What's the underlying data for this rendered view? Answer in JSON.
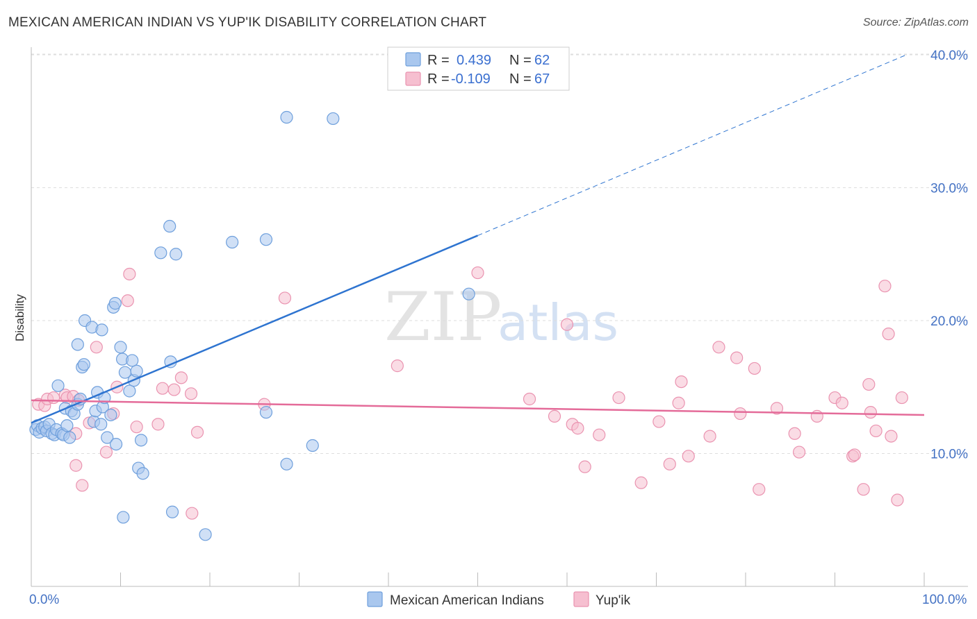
{
  "title": "MEXICAN AMERICAN INDIAN VS YUP'IK DISABILITY CORRELATION CHART",
  "source": "Source: ZipAtlas.com",
  "watermark": {
    "zip": "ZIP",
    "atlas": "atlas"
  },
  "colors": {
    "blue_fill": "#a9c7ee",
    "blue_stroke": "#6e9fdc",
    "blue_line": "#2e74d0",
    "pink_fill": "#f6bfd0",
    "pink_stroke": "#ea93b0",
    "pink_line": "#e46b99",
    "grid": "#dddddd",
    "tick_text": "#4472c4"
  },
  "legend": {
    "rows": [
      {
        "r_label": "R =",
        "r_value": "0.439",
        "n_label": "N =",
        "n_value": "62",
        "series": "blue"
      },
      {
        "r_label": "R =",
        "r_value": "-0.109",
        "n_label": "N =",
        "n_value": "67",
        "series": "pink"
      }
    ]
  },
  "chart_data": {
    "type": "scatter",
    "title": "MEXICAN AMERICAN INDIAN VS YUP'IK DISABILITY CORRELATION CHART",
    "xlabel": "",
    "ylabel": "Disability",
    "xlim": [
      0,
      100
    ],
    "ylim": [
      0,
      42
    ],
    "x_tick_labels": [
      "0.0%",
      "100.0%"
    ],
    "y_ticks": [
      10,
      20,
      30,
      40
    ],
    "y_tick_labels": [
      "10.0%",
      "20.0%",
      "30.0%",
      "40.0%"
    ],
    "grid": true,
    "legend_position": "top-center",
    "series": [
      {
        "name": "Mexican American Indians",
        "color": "blue",
        "R": 0.439,
        "N": 62,
        "trend": {
          "x0": 0,
          "y0": 12.3,
          "x1": 50,
          "y1": 26.4,
          "dashed_to_x": 98,
          "dashed_to_y": 40.0
        },
        "points": [
          [
            0.5,
            11.8
          ],
          [
            0.7,
            12.1
          ],
          [
            0.9,
            11.6
          ],
          [
            1.2,
            11.9
          ],
          [
            1.5,
            12.0
          ],
          [
            1.7,
            11.7
          ],
          [
            2.0,
            12.2
          ],
          [
            2.3,
            11.5
          ],
          [
            2.6,
            11.4
          ],
          [
            2.8,
            11.8
          ],
          [
            3.0,
            15.1
          ],
          [
            3.4,
            11.5
          ],
          [
            3.6,
            11.4
          ],
          [
            3.8,
            13.4
          ],
          [
            4.0,
            12.1
          ],
          [
            4.3,
            11.2
          ],
          [
            4.5,
            13.2
          ],
          [
            4.8,
            13.0
          ],
          [
            5.2,
            13.7
          ],
          [
            5.5,
            14.1
          ],
          [
            5.2,
            18.2
          ],
          [
            5.7,
            16.5
          ],
          [
            5.9,
            16.7
          ],
          [
            6.0,
            20.0
          ],
          [
            6.8,
            19.5
          ],
          [
            7.0,
            12.4
          ],
          [
            7.4,
            14.6
          ],
          [
            7.2,
            13.2
          ],
          [
            7.8,
            12.2
          ],
          [
            7.9,
            19.3
          ],
          [
            8.0,
            13.5
          ],
          [
            8.2,
            14.2
          ],
          [
            8.5,
            11.2
          ],
          [
            8.9,
            12.9
          ],
          [
            9.5,
            10.7
          ],
          [
            9.2,
            21.0
          ],
          [
            9.4,
            21.3
          ],
          [
            10.0,
            18.0
          ],
          [
            10.2,
            17.1
          ],
          [
            10.5,
            16.1
          ],
          [
            11.0,
            14.7
          ],
          [
            11.5,
            15.5
          ],
          [
            11.8,
            16.2
          ],
          [
            11.3,
            17.0
          ],
          [
            12.0,
            8.9
          ],
          [
            12.5,
            8.5
          ],
          [
            12.3,
            11.0
          ],
          [
            10.3,
            5.2
          ],
          [
            14.5,
            25.1
          ],
          [
            15.5,
            27.1
          ],
          [
            16.2,
            25.0
          ],
          [
            15.8,
            5.6
          ],
          [
            15.6,
            16.9
          ],
          [
            19.5,
            3.9
          ],
          [
            22.5,
            25.9
          ],
          [
            26.3,
            26.1
          ],
          [
            26.3,
            13.1
          ],
          [
            28.6,
            35.3
          ],
          [
            33.8,
            35.2
          ],
          [
            28.6,
            9.2
          ],
          [
            31.5,
            10.6
          ],
          [
            49.0,
            22.0
          ]
        ]
      },
      {
        "name": "Yup'ik",
        "color": "pink",
        "R": -0.109,
        "N": 67,
        "trend": {
          "x0": 0,
          "y0": 14.0,
          "x1": 100,
          "y1": 12.9
        },
        "points": [
          [
            0.8,
            13.7
          ],
          [
            1.5,
            13.6
          ],
          [
            1.8,
            14.1
          ],
          [
            2.5,
            14.2
          ],
          [
            3.8,
            14.4
          ],
          [
            4.0,
            14.2
          ],
          [
            4.7,
            14.3
          ],
          [
            5.3,
            14.0
          ],
          [
            5.0,
            11.5
          ],
          [
            5.0,
            9.1
          ],
          [
            5.7,
            7.6
          ],
          [
            6.5,
            12.3
          ],
          [
            7.3,
            18.0
          ],
          [
            8.4,
            10.1
          ],
          [
            9.2,
            13.0
          ],
          [
            9.6,
            15.0
          ],
          [
            11.0,
            23.5
          ],
          [
            10.8,
            21.5
          ],
          [
            11.8,
            12.0
          ],
          [
            14.2,
            12.2
          ],
          [
            14.7,
            14.9
          ],
          [
            16.0,
            14.8
          ],
          [
            16.8,
            15.7
          ],
          [
            17.9,
            14.5
          ],
          [
            18.6,
            11.6
          ],
          [
            18.0,
            5.5
          ],
          [
            26.1,
            13.7
          ],
          [
            28.4,
            21.7
          ],
          [
            41.0,
            16.6
          ],
          [
            50.0,
            23.6
          ],
          [
            55.8,
            14.1
          ],
          [
            58.6,
            12.8
          ],
          [
            60.6,
            12.2
          ],
          [
            61.2,
            11.9
          ],
          [
            62.0,
            9.0
          ],
          [
            60.0,
            19.7
          ],
          [
            63.6,
            11.4
          ],
          [
            65.8,
            14.2
          ],
          [
            68.3,
            7.8
          ],
          [
            70.3,
            12.4
          ],
          [
            71.5,
            9.2
          ],
          [
            72.5,
            13.8
          ],
          [
            72.8,
            15.4
          ],
          [
            73.6,
            9.8
          ],
          [
            76.0,
            11.3
          ],
          [
            77.0,
            18.0
          ],
          [
            79.0,
            17.2
          ],
          [
            79.4,
            13.0
          ],
          [
            81.0,
            16.4
          ],
          [
            81.5,
            7.3
          ],
          [
            83.5,
            13.4
          ],
          [
            85.5,
            11.5
          ],
          [
            86.0,
            10.1
          ],
          [
            88.0,
            12.8
          ],
          [
            90.0,
            14.2
          ],
          [
            90.8,
            13.8
          ],
          [
            92.0,
            9.8
          ],
          [
            92.2,
            9.9
          ],
          [
            93.2,
            7.3
          ],
          [
            93.8,
            15.2
          ],
          [
            94.0,
            13.1
          ],
          [
            94.6,
            11.7
          ],
          [
            95.6,
            22.6
          ],
          [
            96.3,
            11.3
          ],
          [
            97.0,
            6.5
          ],
          [
            97.5,
            14.2
          ],
          [
            96.0,
            19.0
          ]
        ]
      }
    ]
  }
}
